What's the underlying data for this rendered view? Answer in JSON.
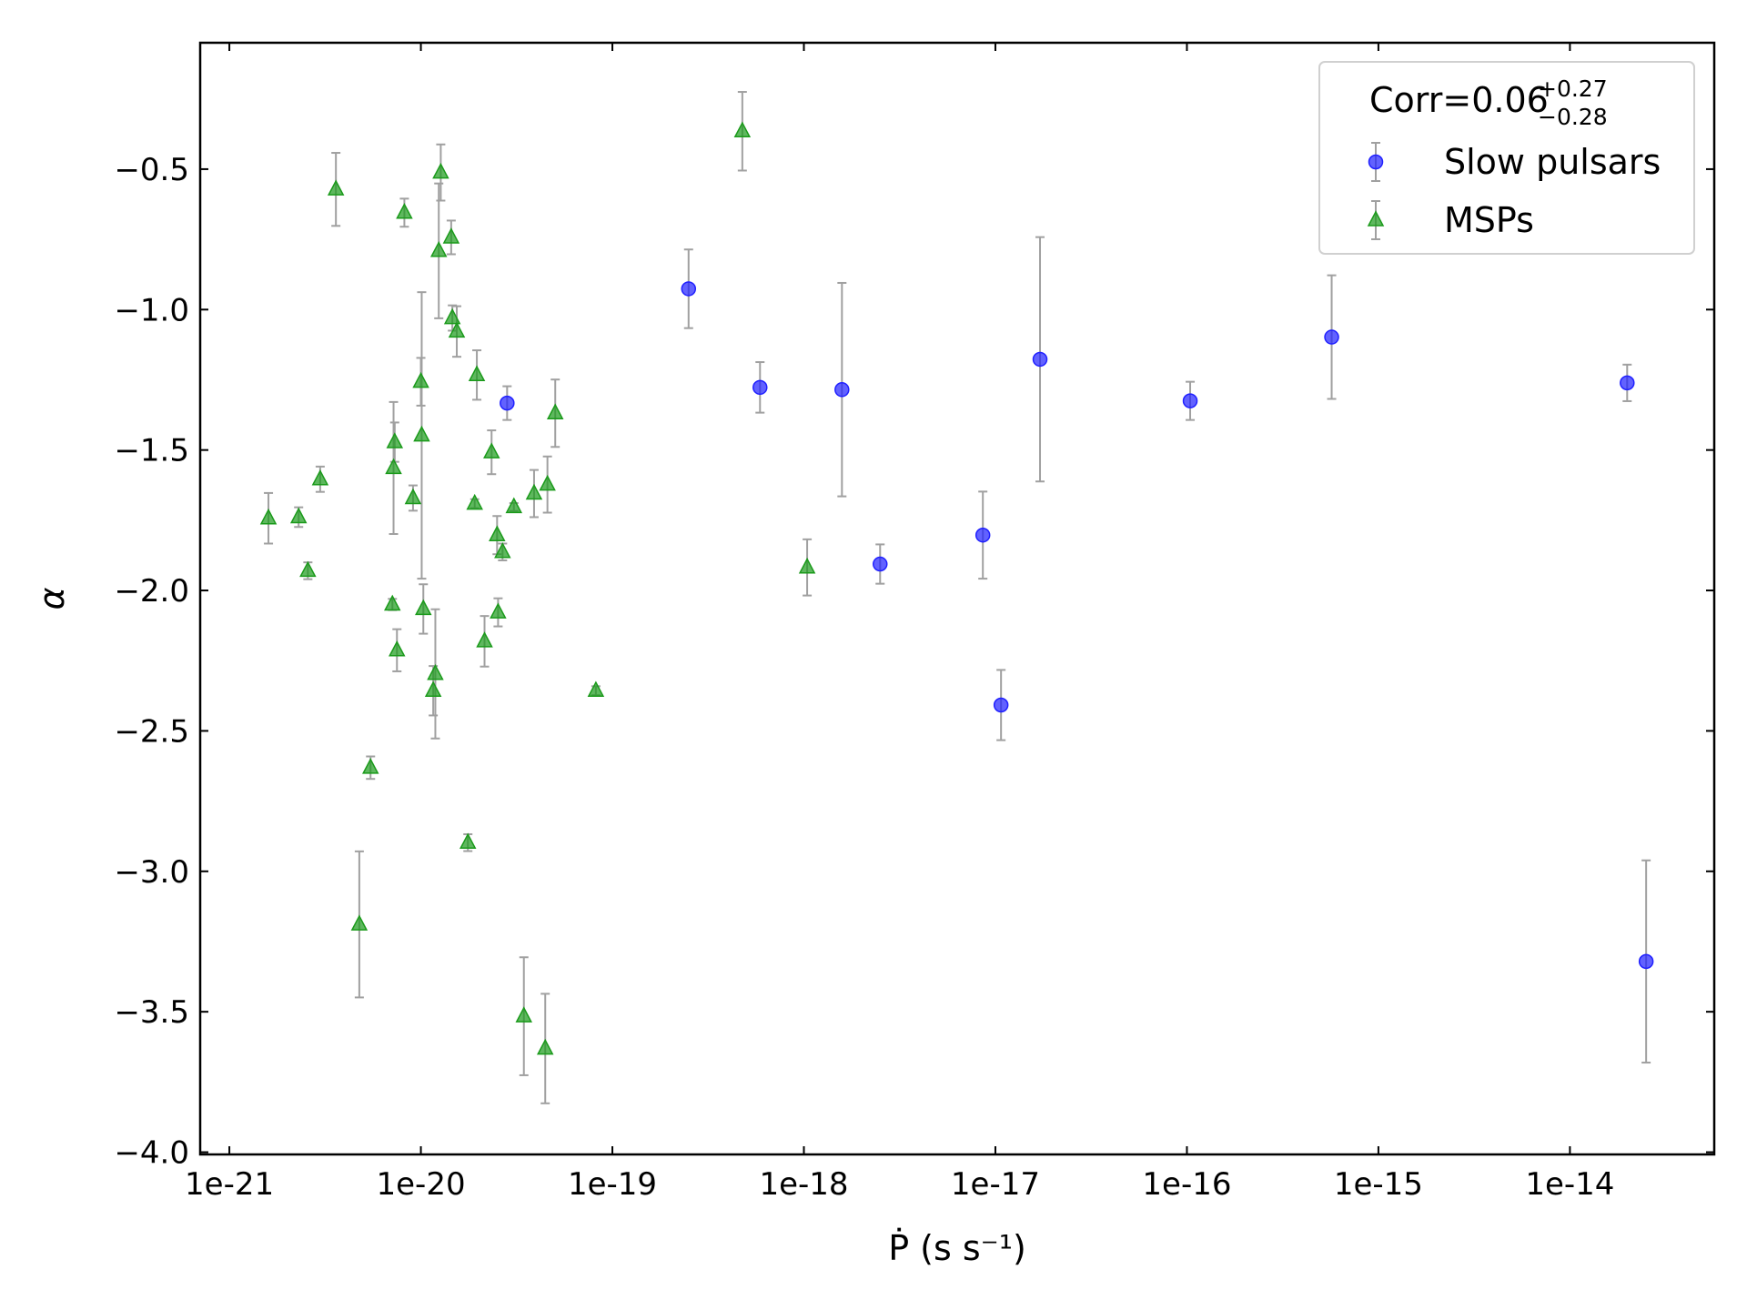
{
  "chart_data": {
    "type": "scatter",
    "xlabel": "Ṗ (s s⁻¹)",
    "ylabel": "α",
    "legend_title": "Corr=0.06",
    "legend_title_sup": "+0.27",
    "legend_title_sub": "−0.28",
    "legend_loc": "upper right",
    "xscale": "log",
    "xlim": [
      7.04e-22,
      5.67e-14
    ],
    "ylim": [
      -4.008,
      -0.05
    ],
    "xticks": [
      {
        "value": 1e-21,
        "label": "1e-21"
      },
      {
        "value": 1e-20,
        "label": "1e-20"
      },
      {
        "value": 1e-19,
        "label": "1e-19"
      },
      {
        "value": 1e-18,
        "label": "1e-18"
      },
      {
        "value": 1e-17,
        "label": "1e-17"
      },
      {
        "value": 1e-16,
        "label": "1e-16"
      },
      {
        "value": 1e-15,
        "label": "1e-15"
      },
      {
        "value": 1e-14,
        "label": "1e-14"
      }
    ],
    "yticks": [
      {
        "value": -4.0,
        "label": "−4.0"
      },
      {
        "value": -3.5,
        "label": "−3.5"
      },
      {
        "value": -3.0,
        "label": "−3.0"
      },
      {
        "value": -2.5,
        "label": "−2.5"
      },
      {
        "value": -2.0,
        "label": "−2.0"
      },
      {
        "value": -1.5,
        "label": "−1.5"
      },
      {
        "value": -1.0,
        "label": "−1.0"
      },
      {
        "value": -0.5,
        "label": "−0.5"
      }
    ],
    "errorbar_color": "#a0a0a0",
    "series": [
      {
        "name": "Slow pulsars",
        "color": "#2020ff",
        "marker": "circle",
        "x": [
          2.82e-20,
          2.5e-19,
          5.9e-19,
          1.58e-18,
          2.5e-18,
          8.6e-18,
          1.07e-17,
          1.71e-17,
          1.04e-16,
          5.7e-16,
          1.99e-14,
          2.5e-14
        ],
        "values": [
          -1.333,
          -0.926,
          -1.277,
          -1.285,
          -1.906,
          -1.803,
          -2.408,
          -1.177,
          -1.325,
          -1.098,
          -1.261,
          -3.321
        ],
        "errors": [
          0.06,
          0.14,
          0.09,
          0.38,
          0.07,
          0.155,
          0.125,
          0.435,
          0.068,
          0.22,
          0.065,
          0.36
        ]
      },
      {
        "name": "MSPs",
        "color": "#1a9a1a",
        "marker": "triangle",
        "x": [
          1.6e-21,
          2.3e-21,
          2.57e-21,
          2.98e-21,
          3.6e-21,
          4.77e-21,
          5.46e-21,
          7.1e-21,
          7.2e-21,
          7.3e-21,
          7.5e-21,
          8.2e-21,
          9.1e-21,
          1e-20,
          1.01e-20,
          1.03e-20,
          1.16e-20,
          1.19e-20,
          1.27e-20,
          1.24e-20,
          1.44e-20,
          1.46e-20,
          1.54e-20,
          1.76e-20,
          1.91e-20,
          1.96e-20,
          2.15e-20,
          2.34e-20,
          2.5e-20,
          2.53e-20,
          2.67e-20,
          3.06e-20,
          3.45e-20,
          3.9e-20,
          4.46e-20,
          4.58e-20,
          5.03e-20,
          8.2e-20,
          4.77e-19,
          1.04e-18
        ],
        "values": [
          -1.743,
          -1.739,
          -1.93,
          -1.604,
          -0.572,
          -3.189,
          -2.631,
          -2.05,
          -1.564,
          -1.472,
          -2.213,
          -0.655,
          -1.671,
          -1.257,
          -1.448,
          -2.066,
          -2.357,
          -2.297,
          -0.512,
          -0.791,
          -0.743,
          -1.03,
          -1.078,
          -2.898,
          -1.691,
          -1.233,
          -2.181,
          -1.508,
          -1.803,
          -2.078,
          -1.863,
          -1.703,
          -3.516,
          -1.655,
          -3.631,
          -1.623,
          -1.369,
          -2.357,
          -0.365,
          -1.918
        ],
        "errors": [
          0.09,
          0.035,
          0.03,
          0.045,
          0.13,
          0.26,
          0.04,
          0.02,
          0.235,
          0.07,
          0.075,
          0.05,
          0.045,
          0.085,
          0.51,
          0.088,
          0.088,
          0.23,
          0.1,
          0.24,
          0.06,
          0.045,
          0.09,
          0.03,
          0.016,
          0.088,
          0.09,
          0.078,
          0.068,
          0.05,
          0.03,
          0.014,
          0.21,
          0.084,
          0.195,
          0.1,
          0.12,
          0.016,
          0.14,
          0.1
        ]
      }
    ]
  }
}
